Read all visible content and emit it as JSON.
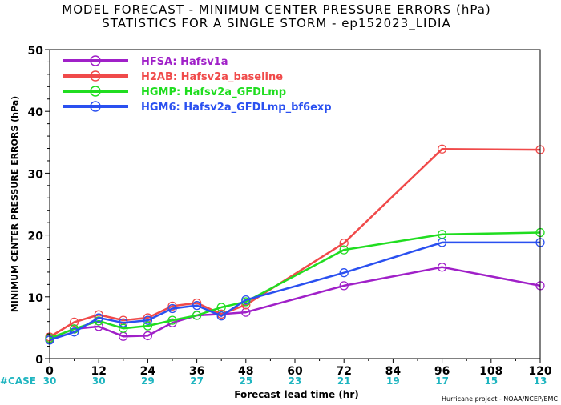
{
  "chart_data": {
    "type": "line",
    "title_lines": [
      "MODEL FORECAST - MINIMUM CENTER PRESSURE ERRORS (hPa)",
      "STATISTICS FOR A SINGLE STORM - ep152023_LIDIA"
    ],
    "xlabel": "Forecast lead time (hr)",
    "ylabel": "MINIMUM CENTER PRESSURE ERRORS (hPa)",
    "xlim": [
      0,
      120
    ],
    "ylim": [
      0,
      50
    ],
    "xticks": [
      0,
      12,
      24,
      36,
      48,
      60,
      72,
      84,
      96,
      108,
      120
    ],
    "yticks": [
      0,
      10,
      20,
      30,
      40,
      50
    ],
    "legend_position": "top-left",
    "case_label": "#CASE",
    "case_counts": [
      "30",
      "30",
      "29",
      "27",
      "25",
      "23",
      "21",
      "19",
      "17",
      "15",
      "13"
    ],
    "credit": "Hurricane project - NOAA/NCEP/EMC",
    "series": [
      {
        "name": "HFSA: Hafsv1a",
        "color": "#a020c8",
        "x": [
          0,
          6,
          12,
          18,
          24,
          30,
          36,
          42,
          48,
          72,
          96,
          120
        ],
        "y": [
          3.2,
          4.8,
          5.2,
          3.6,
          3.7,
          5.8,
          7.0,
          7.2,
          7.5,
          11.8,
          14.8,
          11.8
        ]
      },
      {
        "name": "H2AB: Hafsv2a_baseline",
        "color": "#f04a4a",
        "x": [
          0,
          6,
          12,
          18,
          24,
          30,
          36,
          42,
          48,
          72,
          96,
          120
        ],
        "y": [
          3.5,
          5.9,
          7.1,
          6.2,
          6.6,
          8.5,
          9.0,
          7.2,
          8.7,
          18.7,
          33.9,
          33.8
        ]
      },
      {
        "name": "HGMP: Hafsv2a_GFDLmp",
        "color": "#20dd20",
        "x": [
          0,
          6,
          12,
          18,
          24,
          30,
          36,
          42,
          48,
          72,
          96,
          120
        ],
        "y": [
          3.3,
          4.8,
          6.1,
          4.9,
          5.3,
          6.2,
          7.0,
          8.3,
          9.2,
          17.6,
          20.1,
          20.4
        ]
      },
      {
        "name": "HGM6: Hafsv2a_GFDLmp_bf6exp",
        "color": "#2a50f0",
        "x": [
          0,
          6,
          12,
          18,
          24,
          30,
          36,
          42,
          48,
          72,
          96,
          120
        ],
        "y": [
          3.0,
          4.3,
          6.6,
          5.8,
          6.2,
          8.1,
          8.6,
          6.9,
          9.5,
          13.9,
          18.8,
          18.8
        ]
      }
    ]
  }
}
